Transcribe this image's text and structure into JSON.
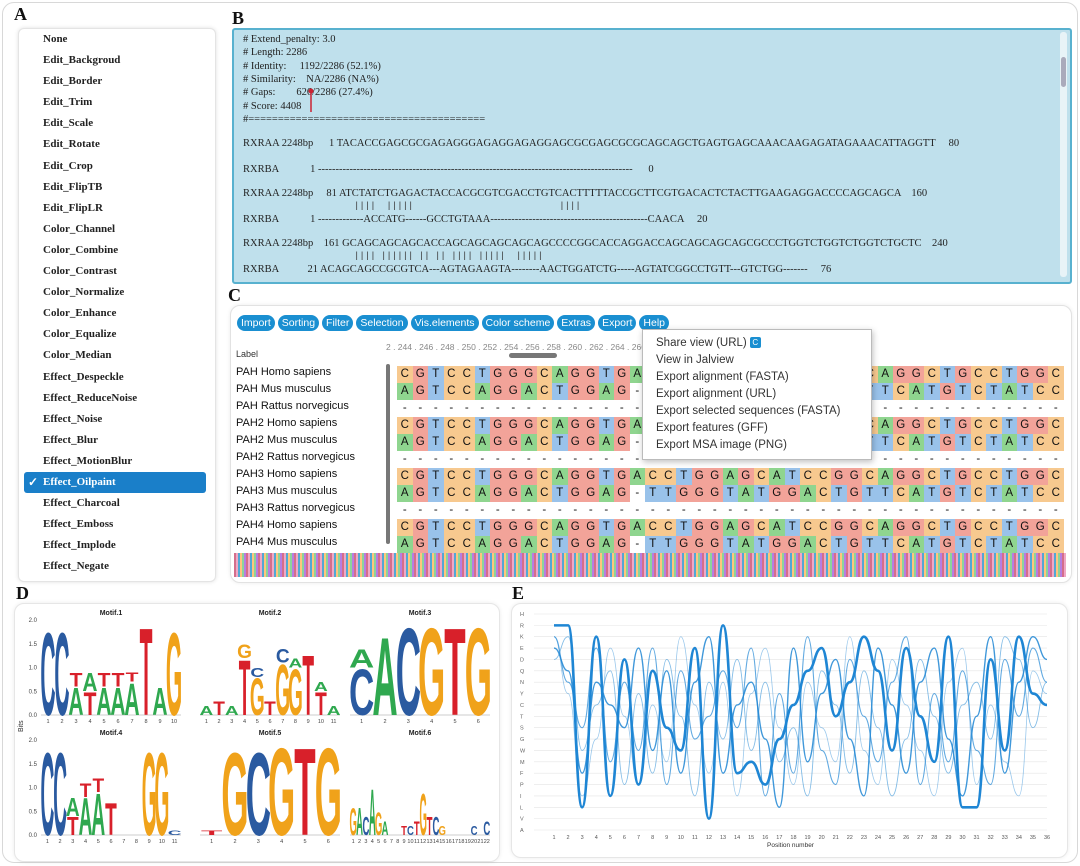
{
  "panels": {
    "a": "A",
    "b": "B",
    "c": "C",
    "d": "D",
    "e": "E"
  },
  "menu_a": {
    "items": [
      "None",
      "Edit_Backgroud",
      "Edit_Border",
      "Edit_Trim",
      "Edit_Scale",
      "Edit_Rotate",
      "Edit_Crop",
      "Edit_FlipTB",
      "Edit_FlipLR",
      "Color_Channel",
      "Color_Combine",
      "Color_Contrast",
      "Color_Normalize",
      "Color_Enhance",
      "Color_Equalize",
      "Color_Median",
      "Effect_Despeckle",
      "Effect_ReduceNoise",
      "Effect_Noise",
      "Effect_Blur",
      "Effect_MotionBlur",
      "Effect_Oilpaint",
      "Effect_Charcoal",
      "Effect_Emboss",
      "Effect_Implode",
      "Effect_Negate"
    ],
    "selected_index": 21,
    "check_glyph": "✓"
  },
  "alignment_b": {
    "header": [
      "# Extend_penalty: 3.0",
      "# Length: 2286",
      "# Identity:     1192/2286 (52.1%)",
      "# Similarity:    NA/2286 (NA%)",
      "# Gaps:        626/2286 (27.4%)",
      "# Score: 4408",
      "#========================================"
    ],
    "blocks": [
      {
        "top": "RXRAA 2248bp      1 TACACCGAGCGCGAGAGGGAGAGGAGAGGAGCGCGAGCGCGCAGCAGCTGAGTGAGCAAACAAGAGATAGAAACATTAGGTT     80",
        "match": "",
        "bottom": "RXRBA            1 ------------------------------------------------------------------------------------------      0"
      },
      {
        "top": "RXRAA 2248bp     81 ATCTATCTGAGACTACCACGCGTCGACCTGTCACTTTTTACCGCTTCGTGACACTCTACTTGAAGAGGACCCCAGCAGCA    160",
        "match": "||||  |||||                           ||||",
        "bottom": "RXRBA            1 -------------ACCATG------GCCTGTAAA---------------------------------------------CAACA     20"
      },
      {
        "top": "RXRAA 2248bp    161 GCAGCAGCAGCACCAGCAGCAGCAGCAGCCCCGGCACCAGGACCAGCAGCAGCAGCGCCCTGGTCTGGTCTGGTCTGCTC    240",
        "match": "|||| |||||| || || |||| |||||  |||||",
        "bottom": "RXRBA           21 ACAGCAGCCGCGTCA---AGTAGAAGTA--------AACTGGATCTG-----AGTATCGGCCTGTT---GTCTGG-------     76"
      }
    ]
  },
  "msa_c": {
    "toolbar": [
      "Import",
      "Sorting",
      "Filter",
      "Selection",
      "Vis.elements",
      "Color scheme",
      "Extras",
      "Export",
      "Help"
    ],
    "label_header": "Label",
    "ruler": "2 . 244 . 246 . 248 . 250 . 252 . 254 . 256 . 258 . 260 . 262 . 264 . 266 . 268 . 270 . 272 . 274 . 276 . 278 . 280 . 282 . 284 . 286 . 2",
    "rows": [
      {
        "name": "PAH  Homo  sapiens",
        "seq": "CGTCCTGGGCAGGTGACCTGGAGCATCCGGCAGGCTGCCTGGC"
      },
      {
        "name": "PAH  Mus  musculus",
        "seq": "AGTCCAGGACTGGAG-TTGGGTATGGACTGTTCATGTCTATCCAC"
      },
      {
        "name": "PAH  Rattus  norvegicus",
        "seq": "--------------------------------------------"
      },
      {
        "name": "PAH2  Homo  sapiens",
        "seq": "CGTCCTGGGCAGGTGACCTGGAGCATCCGGCAGGCTGCCTGGC"
      },
      {
        "name": "PAH2  Mus  musculus",
        "seq": "AGTCCAGGACTGGAG-TTGGGTATGGACTGTTCATGTCTATCCAC"
      },
      {
        "name": "PAH2  Rattus  norvegicus",
        "seq": "--------------------------------------------"
      },
      {
        "name": "PAH3  Homo  sapiens",
        "seq": "CGTCCTGGGCAGGTGACCTGGAGCATCCGGCAGGCTGCCTGGC"
      },
      {
        "name": "PAH3  Mus  musculus",
        "seq": "AGTCCAGGACTGGAG-TTGGGTATGGACTGTTCATGTCTATCCAC"
      },
      {
        "name": "PAH3  Rattus  norvegicus",
        "seq": "--------------------------------------------"
      },
      {
        "name": "PAH4  Homo  sapiens",
        "seq": "CGTCCTGGGCAGGTGACCTGGAGCATCCGGCAGGCTGCCTGGC"
      },
      {
        "name": "PAH4  Mus  musculus",
        "seq": "AGTCCAGGACTGGAG-TTGGGTATGGACTGTTCATGTCTATCCAC"
      }
    ],
    "export_menu": [
      "Share view (URL)",
      "View in Jalview",
      "Export alignment (FASTA)",
      "Export alignment (URL)",
      "Export selected sequences (FASTA)",
      "Export features (GFF)",
      "Export MSA image (PNG)"
    ],
    "share_icon_glyph": "C",
    "colors": {
      "A": "#8fd58f",
      "C": "#f7c98f",
      "G": "#f2a399",
      "T": "#99c2ea"
    }
  },
  "chart_data": [
    {
      "type": "sequence-logo",
      "ylabel": "Bits",
      "yticks": [
        "0.0",
        "0.5",
        "1.0",
        "1.5",
        "2.0"
      ],
      "ylim": [
        0,
        2
      ],
      "motifs": [
        {
          "title": "Motif.1",
          "positions": [
            "1",
            "2",
            "3",
            "4",
            "5",
            "6",
            "7",
            "8",
            "9",
            "10"
          ],
          "letters": [
            [
              {
                "c": "C",
                "h": 1.8
              }
            ],
            [
              {
                "c": "C",
                "h": 1.8
              }
            ],
            [
              {
                "c": "A",
                "h": 0.6
              },
              {
                "c": "T",
                "h": 0.3
              }
            ],
            [
              {
                "c": "T",
                "h": 0.5
              },
              {
                "c": "A",
                "h": 0.4
              }
            ],
            [
              {
                "c": "A",
                "h": 0.6
              },
              {
                "c": "T",
                "h": 0.3
              }
            ],
            [
              {
                "c": "A",
                "h": 0.6
              },
              {
                "c": "T",
                "h": 0.3
              }
            ],
            [
              {
                "c": "A",
                "h": 0.7
              },
              {
                "c": "T",
                "h": 0.2
              }
            ],
            [
              {
                "c": "T",
                "h": 1.9
              }
            ],
            [
              {
                "c": "A",
                "h": 0.6
              }
            ],
            [
              {
                "c": "G",
                "h": 1.8
              }
            ]
          ]
        },
        {
          "title": "Motif.2",
          "positions": [
            "1",
            "2",
            "3",
            "4",
            "5",
            "6",
            "7",
            "8",
            "9",
            "10",
            "11"
          ],
          "letters": [
            [
              {
                "c": "A",
                "h": 0.2
              }
            ],
            [
              {
                "c": "T",
                "h": 0.3
              }
            ],
            [
              {
                "c": "A",
                "h": 0.2
              }
            ],
            [
              {
                "c": "T",
                "h": 1.2
              },
              {
                "c": "G",
                "h": 0.3
              }
            ],
            [
              {
                "c": "G",
                "h": 0.8
              },
              {
                "c": "C",
                "h": 0.2
              }
            ],
            [
              {
                "c": "T",
                "h": 0.3
              }
            ],
            [
              {
                "c": "G",
                "h": 1.1
              },
              {
                "c": "C",
                "h": 0.3
              }
            ],
            [
              {
                "c": "G",
                "h": 1.0
              },
              {
                "c": "A",
                "h": 0.2
              }
            ],
            [
              {
                "c": "T",
                "h": 1.3
              }
            ],
            [
              {
                "c": "T",
                "h": 0.5
              },
              {
                "c": "A",
                "h": 0.2
              }
            ],
            [
              {
                "c": "A",
                "h": 0.2
              }
            ]
          ]
        },
        {
          "title": "Motif.3",
          "positions": [
            "1",
            "2",
            "3",
            "4",
            "5",
            "6"
          ],
          "letters": [
            [
              {
                "c": "C",
                "h": 1.0
              },
              {
                "c": "A",
                "h": 0.4
              }
            ],
            [
              {
                "c": "A",
                "h": 1.7
              }
            ],
            [
              {
                "c": "C",
                "h": 1.9
              }
            ],
            [
              {
                "c": "G",
                "h": 1.9
              }
            ],
            [
              {
                "c": "T",
                "h": 1.9
              }
            ],
            [
              {
                "c": "G",
                "h": 1.9
              }
            ]
          ]
        },
        {
          "title": "Motif.4",
          "positions": [
            "1",
            "2",
            "3",
            "4",
            "5",
            "6",
            "7",
            "8",
            "9",
            "10",
            "11"
          ],
          "letters": [
            [
              {
                "c": "C",
                "h": 1.8
              }
            ],
            [
              {
                "c": "C",
                "h": 1.8
              }
            ],
            [
              {
                "c": "T",
                "h": 0.4
              },
              {
                "c": "A",
                "h": 0.4
              }
            ],
            [
              {
                "c": "A",
                "h": 0.8
              },
              {
                "c": "T",
                "h": 0.3
              }
            ],
            [
              {
                "c": "A",
                "h": 0.9
              },
              {
                "c": "T",
                "h": 0.3
              }
            ],
            [
              {
                "c": "T",
                "h": 0.7
              }
            ],
            [
              {
                "c": "",
                "h": 0
              }
            ],
            [
              {
                "c": "",
                "h": 0
              }
            ],
            [
              {
                "c": "G",
                "h": 1.8
              }
            ],
            [
              {
                "c": "G",
                "h": 1.8
              }
            ],
            [
              {
                "c": "C",
                "h": 0.1
              }
            ]
          ]
        },
        {
          "title": "Motif.5",
          "positions": [
            "1",
            "2",
            "3",
            "4",
            "5",
            "6"
          ],
          "letters": [
            [
              {
                "c": "T",
                "h": 0.1
              }
            ],
            [
              {
                "c": "G",
                "h": 1.8
              }
            ],
            [
              {
                "c": "C",
                "h": 1.8
              }
            ],
            [
              {
                "c": "G",
                "h": 1.9
              }
            ],
            [
              {
                "c": "T",
                "h": 1.9
              }
            ],
            [
              {
                "c": "G",
                "h": 1.9
              }
            ]
          ]
        },
        {
          "title": "Motif.6",
          "positions": [
            "1",
            "2",
            "3",
            "4",
            "5",
            "6",
            "7",
            "8",
            "9",
            "10",
            "11",
            "12",
            "13",
            "14",
            "15",
            "16",
            "17",
            "18",
            "19",
            "20",
            "21",
            "22"
          ],
          "letters": [
            [
              {
                "c": "G",
                "h": 0.6
              }
            ],
            [
              {
                "c": "A",
                "h": 0.6
              }
            ],
            [
              {
                "c": "C",
                "h": 0.4
              }
            ],
            [
              {
                "c": "A",
                "h": 1.0
              }
            ],
            [
              {
                "c": "G",
                "h": 0.5
              }
            ],
            [
              {
                "c": "A",
                "h": 0.3
              }
            ],
            [
              {
                "c": "",
                "h": 0
              }
            ],
            [
              {
                "c": "",
                "h": 0
              }
            ],
            [
              {
                "c": "T",
                "h": 0.2
              }
            ],
            [
              {
                "c": "C",
                "h": 0.2
              }
            ],
            [
              {
                "c": "T",
                "h": 0.3
              }
            ],
            [
              {
                "c": "G",
                "h": 0.9
              }
            ],
            [
              {
                "c": "T",
                "h": 0.4
              }
            ],
            [
              {
                "c": "C",
                "h": 0.4
              }
            ],
            [
              {
                "c": "G",
                "h": 0.2
              }
            ],
            [
              {
                "c": "",
                "h": 0
              }
            ],
            [
              {
                "c": "",
                "h": 0
              }
            ],
            [
              {
                "c": "",
                "h": 0
              }
            ],
            [
              {
                "c": "",
                "h": 0
              }
            ],
            [
              {
                "c": "C",
                "h": 0.2
              }
            ],
            [
              {
                "c": "",
                "h": 0
              }
            ],
            [
              {
                "c": "C",
                "h": 0.3
              }
            ]
          ]
        }
      ],
      "colors": {
        "A": "#2fa84f",
        "C": "#2a5aa0",
        "G": "#f0a21a",
        "T": "#d8202a"
      }
    },
    {
      "type": "line",
      "xlabel": "Position number",
      "x": [
        1,
        2,
        3,
        4,
        5,
        6,
        7,
        8,
        9,
        10,
        11,
        12,
        13,
        14,
        15,
        16,
        17,
        18,
        19,
        20,
        21,
        22,
        23,
        24,
        25,
        26,
        27,
        28,
        29,
        30,
        31,
        32,
        33,
        34,
        35,
        36
      ],
      "y_categories": [
        "H",
        "R",
        "K",
        "E",
        "D",
        "Q",
        "N",
        "Y",
        "C",
        "T",
        "S",
        "G",
        "W",
        "M",
        "F",
        "P",
        "I",
        "L",
        "V",
        "A"
      ],
      "grid": true,
      "series": [
        {
          "values": [
            1,
            1,
            17,
            2,
            16,
            4,
            15,
            5,
            10,
            12,
            3,
            18,
            1,
            14,
            13,
            15,
            11,
            8,
            5,
            3,
            9,
            6,
            2,
            5,
            12,
            3,
            9,
            13,
            2,
            17,
            17,
            4,
            12,
            2,
            7,
            8
          ]
        },
        {
          "values": [
            3,
            5,
            14,
            6,
            8,
            10,
            3,
            12,
            5,
            14,
            6,
            2,
            14,
            8,
            6,
            11,
            17,
            3,
            13,
            7,
            4,
            11,
            16,
            3,
            8,
            14,
            6,
            3,
            11,
            16,
            9,
            2,
            14,
            6,
            2,
            4
          ]
        },
        {
          "values": [
            2,
            6,
            10,
            3,
            13,
            6,
            12,
            3,
            15,
            5,
            11,
            9,
            5,
            10,
            3,
            16,
            7,
            14,
            2,
            12,
            15,
            4,
            9,
            13,
            6,
            2,
            15,
            7,
            13,
            5,
            12,
            15,
            4,
            9,
            3,
            6
          ]
        },
        {
          "values": [
            4,
            2,
            12,
            8,
            5,
            15,
            7,
            14,
            4,
            9,
            16,
            6,
            11,
            4,
            12,
            6,
            13,
            10,
            16,
            5,
            8,
            14,
            5,
            10,
            16,
            11,
            4,
            9,
            14,
            8,
            6,
            11,
            2,
            4,
            10,
            6
          ]
        },
        {
          "values": [
            2,
            7,
            16,
            11,
            3,
            9,
            15,
            8,
            13,
            2,
            8,
            14,
            6,
            16,
            7,
            3,
            10,
            15,
            6,
            10,
            13,
            2,
            12,
            15,
            4,
            8,
            12,
            16,
            6,
            3,
            15,
            8,
            13,
            16,
            5,
            7
          ]
        }
      ],
      "line_color": "#1f86d4"
    }
  ]
}
